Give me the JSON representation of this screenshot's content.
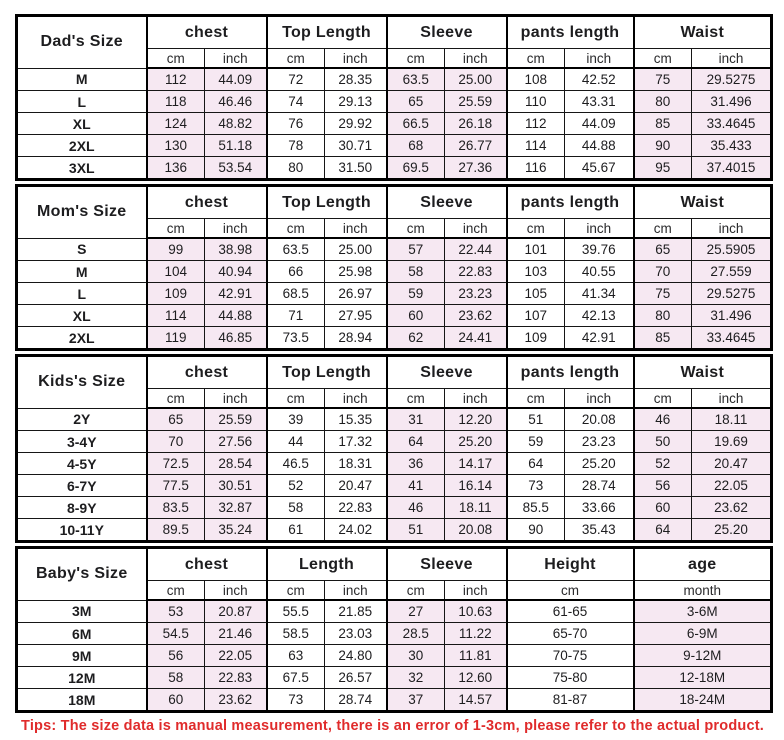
{
  "colors": {
    "shaded_cell": "#f6e8f2",
    "border": "#000000",
    "tips_text": "#e02b2b"
  },
  "tips": "Tips: The size data is manual measurement, there is an error of 1-3cm, please refer to the actual product.",
  "tables": [
    {
      "label": "Dad's Size",
      "groups": [
        {
          "name": "chest",
          "subs": [
            "cm",
            "inch"
          ]
        },
        {
          "name": "Top Length",
          "subs": [
            "cm",
            "inch"
          ]
        },
        {
          "name": "Sleeve",
          "subs": [
            "cm",
            "inch"
          ]
        },
        {
          "name": "pants length",
          "subs": [
            "cm",
            "inch"
          ]
        },
        {
          "name": "Waist",
          "subs": [
            "cm",
            "inch"
          ]
        }
      ],
      "rows": [
        {
          "size": "M",
          "values": [
            "112",
            "44.09",
            "72",
            "28.35",
            "63.5",
            "25.00",
            "108",
            "42.52",
            "75",
            "29.5275"
          ]
        },
        {
          "size": "L",
          "values": [
            "118",
            "46.46",
            "74",
            "29.13",
            "65",
            "25.59",
            "110",
            "43.31",
            "80",
            "31.496"
          ]
        },
        {
          "size": "XL",
          "values": [
            "124",
            "48.82",
            "76",
            "29.92",
            "66.5",
            "26.18",
            "112",
            "44.09",
            "85",
            "33.4645"
          ]
        },
        {
          "size": "2XL",
          "values": [
            "130",
            "51.18",
            "78",
            "30.71",
            "68",
            "26.77",
            "114",
            "44.88",
            "90",
            "35.433"
          ]
        },
        {
          "size": "3XL",
          "values": [
            "136",
            "53.54",
            "80",
            "31.50",
            "69.5",
            "27.36",
            "116",
            "45.67",
            "95",
            "37.4015"
          ]
        }
      ]
    },
    {
      "label": "Mom's Size",
      "groups": [
        {
          "name": "chest",
          "subs": [
            "cm",
            "inch"
          ]
        },
        {
          "name": "Top Length",
          "subs": [
            "cm",
            "inch"
          ]
        },
        {
          "name": "Sleeve",
          "subs": [
            "cm",
            "inch"
          ]
        },
        {
          "name": "pants length",
          "subs": [
            "cm",
            "inch"
          ]
        },
        {
          "name": "Waist",
          "subs": [
            "cm",
            "inch"
          ]
        }
      ],
      "rows": [
        {
          "size": "S",
          "values": [
            "99",
            "38.98",
            "63.5",
            "25.00",
            "57",
            "22.44",
            "101",
            "39.76",
            "65",
            "25.5905"
          ]
        },
        {
          "size": "M",
          "values": [
            "104",
            "40.94",
            "66",
            "25.98",
            "58",
            "22.83",
            "103",
            "40.55",
            "70",
            "27.559"
          ]
        },
        {
          "size": "L",
          "values": [
            "109",
            "42.91",
            "68.5",
            "26.97",
            "59",
            "23.23",
            "105",
            "41.34",
            "75",
            "29.5275"
          ]
        },
        {
          "size": "XL",
          "values": [
            "114",
            "44.88",
            "71",
            "27.95",
            "60",
            "23.62",
            "107",
            "42.13",
            "80",
            "31.496"
          ]
        },
        {
          "size": "2XL",
          "values": [
            "119",
            "46.85",
            "73.5",
            "28.94",
            "62",
            "24.41",
            "109",
            "42.91",
            "85",
            "33.4645"
          ]
        }
      ]
    },
    {
      "label": "Kids's Size",
      "groups": [
        {
          "name": "chest",
          "subs": [
            "cm",
            "inch"
          ]
        },
        {
          "name": "Top Length",
          "subs": [
            "cm",
            "inch"
          ]
        },
        {
          "name": "Sleeve",
          "subs": [
            "cm",
            "inch"
          ]
        },
        {
          "name": "pants length",
          "subs": [
            "cm",
            "inch"
          ]
        },
        {
          "name": "Waist",
          "subs": [
            "cm",
            "inch"
          ]
        }
      ],
      "rows": [
        {
          "size": "2Y",
          "values": [
            "65",
            "25.59",
            "39",
            "15.35",
            "31",
            "12.20",
            "51",
            "20.08",
            "46",
            "18.11"
          ]
        },
        {
          "size": "3-4Y",
          "values": [
            "70",
            "27.56",
            "44",
            "17.32",
            "64",
            "25.20",
            "59",
            "23.23",
            "50",
            "19.69"
          ]
        },
        {
          "size": "4-5Y",
          "values": [
            "72.5",
            "28.54",
            "46.5",
            "18.31",
            "36",
            "14.17",
            "64",
            "25.20",
            "52",
            "20.47"
          ]
        },
        {
          "size": "6-7Y",
          "values": [
            "77.5",
            "30.51",
            "52",
            "20.47",
            "41",
            "16.14",
            "73",
            "28.74",
            "56",
            "22.05"
          ]
        },
        {
          "size": "8-9Y",
          "values": [
            "83.5",
            "32.87",
            "58",
            "22.83",
            "46",
            "18.11",
            "85.5",
            "33.66",
            "60",
            "23.62"
          ]
        },
        {
          "size": "10-11Y",
          "values": [
            "89.5",
            "35.24",
            "61",
            "24.02",
            "51",
            "20.08",
            "90",
            "35.43",
            "64",
            "25.20"
          ]
        }
      ]
    },
    {
      "label": "Baby's Size",
      "groups": [
        {
          "name": "chest",
          "subs": [
            "cm",
            "inch"
          ]
        },
        {
          "name": "Length",
          "subs": [
            "cm",
            "inch"
          ]
        },
        {
          "name": "Sleeve",
          "subs": [
            "cm",
            "inch"
          ]
        },
        {
          "name": "Height",
          "subs": [
            "cm"
          ]
        },
        {
          "name": "age",
          "subs": [
            "month"
          ]
        }
      ],
      "rows": [
        {
          "size": "3M",
          "values": [
            "53",
            "20.87",
            "55.5",
            "21.85",
            "27",
            "10.63",
            "61-65",
            "3-6M"
          ]
        },
        {
          "size": "6M",
          "values": [
            "54.5",
            "21.46",
            "58.5",
            "23.03",
            "28.5",
            "11.22",
            "65-70",
            "6-9M"
          ]
        },
        {
          "size": "9M",
          "values": [
            "56",
            "22.05",
            "63",
            "24.80",
            "30",
            "11.81",
            "70-75",
            "9-12M"
          ]
        },
        {
          "size": "12M",
          "values": [
            "58",
            "22.83",
            "67.5",
            "26.57",
            "32",
            "12.60",
            "75-80",
            "12-18M"
          ]
        },
        {
          "size": "18M",
          "values": [
            "60",
            "23.62",
            "73",
            "28.74",
            "37",
            "14.57",
            "81-87",
            "18-24M"
          ]
        }
      ]
    }
  ]
}
